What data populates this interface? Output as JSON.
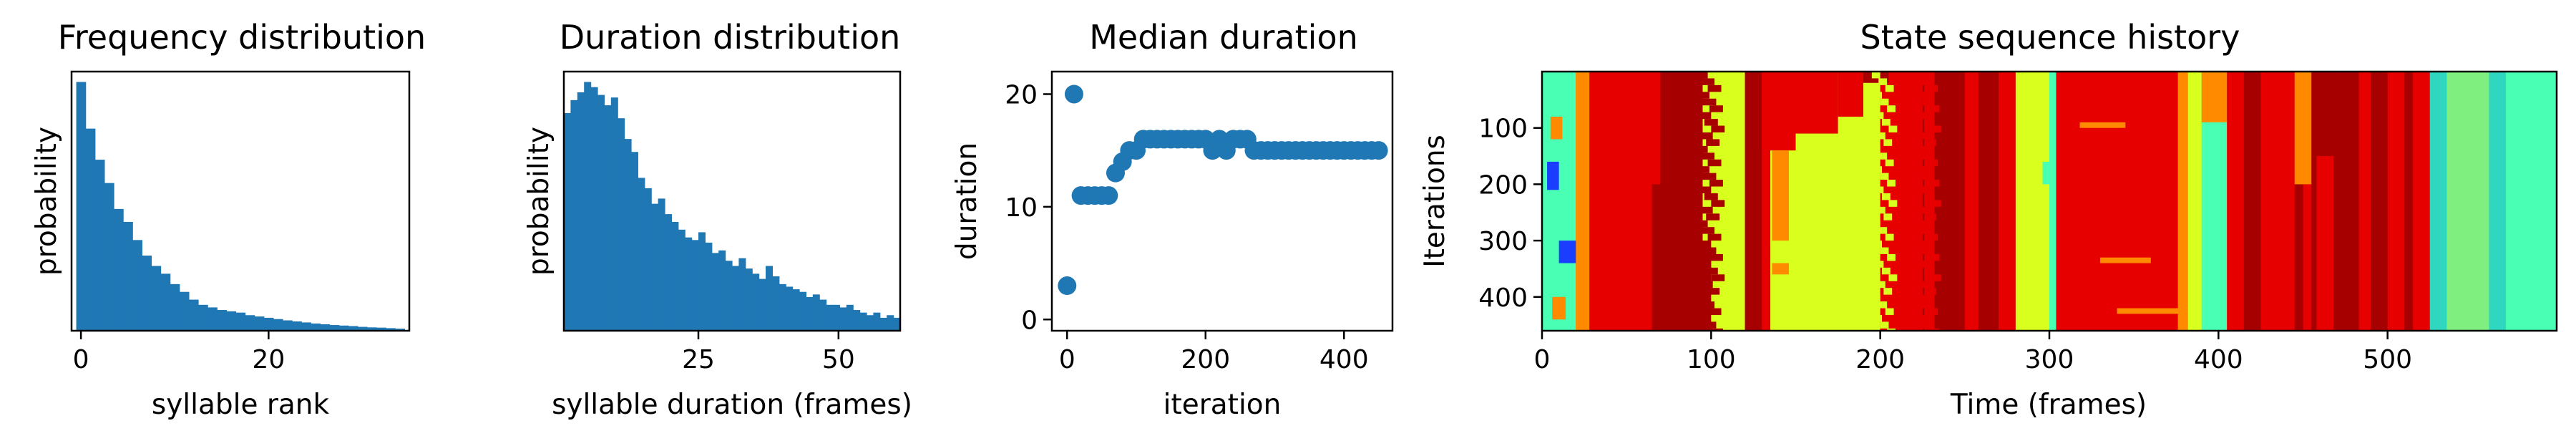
{
  "chart_data": [
    {
      "type": "bar",
      "title": "Frequency distribution",
      "xlabel": "syllable rank",
      "ylabel": "probability",
      "xlim": [
        -1,
        35
      ],
      "ylim": [
        0,
        1.0
      ],
      "xticks": [
        0,
        20
      ],
      "yticks": [],
      "color": "#1f77b4",
      "values": [
        0.96,
        0.78,
        0.66,
        0.57,
        0.47,
        0.42,
        0.35,
        0.29,
        0.25,
        0.22,
        0.18,
        0.15,
        0.12,
        0.1,
        0.09,
        0.08,
        0.075,
        0.07,
        0.06,
        0.055,
        0.05,
        0.045,
        0.04,
        0.036,
        0.032,
        0.028,
        0.025,
        0.022,
        0.02,
        0.018,
        0.015,
        0.013,
        0.012,
        0.01,
        0.008
      ]
    },
    {
      "type": "bar",
      "title": "Duration distribution",
      "xlabel": "syllable duration (frames)",
      "ylabel": "probability",
      "xlim": [
        1,
        61
      ],
      "ylim": [
        0,
        1.0
      ],
      "xticks": [
        25,
        50
      ],
      "yticks": [],
      "color": "#1f77b4",
      "values": [
        0.84,
        0.89,
        0.92,
        0.96,
        0.94,
        0.91,
        0.87,
        0.9,
        0.82,
        0.74,
        0.69,
        0.59,
        0.55,
        0.49,
        0.51,
        0.45,
        0.42,
        0.39,
        0.36,
        0.35,
        0.38,
        0.34,
        0.3,
        0.31,
        0.27,
        0.25,
        0.28,
        0.24,
        0.22,
        0.2,
        0.25,
        0.21,
        0.18,
        0.17,
        0.16,
        0.15,
        0.13,
        0.14,
        0.12,
        0.1,
        0.1,
        0.09,
        0.1,
        0.08,
        0.07,
        0.06,
        0.07,
        0.05,
        0.06,
        0.05
      ]
    },
    {
      "type": "scatter",
      "title": "Median duration",
      "xlabel": "iteration",
      "ylabel": "duration",
      "xlim": [
        -22,
        470
      ],
      "ylim": [
        -1,
        22
      ],
      "xticks": [
        0,
        200,
        400
      ],
      "yticks": [
        0,
        10,
        20
      ],
      "color": "#1f77b4",
      "x": [
        0,
        10,
        20,
        30,
        40,
        50,
        60,
        70,
        80,
        90,
        100,
        110,
        120,
        130,
        140,
        150,
        160,
        170,
        180,
        190,
        200,
        210,
        220,
        230,
        240,
        250,
        260,
        270,
        280,
        290,
        300,
        310,
        320,
        330,
        340,
        350,
        360,
        370,
        380,
        390,
        400,
        410,
        420,
        430,
        440,
        450
      ],
      "y": [
        3,
        20,
        11,
        11,
        11,
        11,
        11,
        13,
        14,
        15,
        15,
        16,
        16,
        16,
        16,
        16,
        16,
        16,
        16,
        16,
        16,
        15,
        16,
        15,
        16,
        16,
        16,
        15,
        15,
        15,
        15,
        15,
        15,
        15,
        15,
        15,
        15,
        15,
        15,
        15,
        15,
        15,
        15,
        15,
        15,
        15
      ]
    },
    {
      "type": "heatmap",
      "title": "State sequence history",
      "xlabel": "Time (frames)",
      "ylabel": "Iterations",
      "xlim": [
        0,
        600
      ],
      "ylim": [
        460,
        0
      ],
      "xticks": [
        0,
        100,
        200,
        300,
        400,
        500
      ],
      "yticks": [
        100,
        200,
        300,
        400
      ],
      "palette": {
        "red": "#e60000",
        "darkred": "#a70000",
        "yellow": "#d9ff1f",
        "orange": "#ff8a00",
        "cyan": "#49ffb4",
        "lightgreen": "#7ff07f",
        "blue": "#1a3dff",
        "teal": "#2fd6c0"
      },
      "segments": [
        {
          "x0": 0,
          "x1": 10,
          "state": "cyan"
        },
        {
          "x0": 10,
          "x1": 25,
          "state": "orange"
        },
        {
          "x0": 25,
          "x1": 65,
          "state": "red"
        },
        {
          "x0": 65,
          "x1": 95,
          "state": "darkred"
        },
        {
          "x0": 95,
          "x1": 120,
          "state": "yellow"
        },
        {
          "x0": 120,
          "x1": 135,
          "state": "red"
        },
        {
          "x0": 135,
          "x1": 200,
          "state": "yellow"
        },
        {
          "x0": 200,
          "x1": 225,
          "state": "red"
        },
        {
          "x0": 225,
          "x1": 280,
          "state": "darkred"
        },
        {
          "x0": 280,
          "x1": 300,
          "state": "yellow"
        },
        {
          "x0": 300,
          "x1": 310,
          "state": "cyan"
        },
        {
          "x0": 310,
          "x1": 380,
          "state": "red"
        },
        {
          "x0": 380,
          "x1": 390,
          "state": "yellow"
        },
        {
          "x0": 390,
          "x1": 410,
          "state": "cyan"
        },
        {
          "x0": 410,
          "x1": 450,
          "state": "darkred"
        },
        {
          "x0": 450,
          "x1": 470,
          "state": "red"
        },
        {
          "x0": 470,
          "x1": 530,
          "state": "darkred"
        },
        {
          "x0": 530,
          "x1": 570,
          "state": "lightgreen"
        },
        {
          "x0": 570,
          "x1": 600,
          "state": "cyan"
        }
      ],
      "patches": [
        {
          "x0": 0,
          "x1": 20,
          "y0": 0,
          "y1": 460,
          "state": "cyan"
        },
        {
          "x0": 5,
          "x1": 12,
          "y0": 80,
          "y1": 120,
          "state": "orange"
        },
        {
          "x0": 3,
          "x1": 10,
          "y0": 160,
          "y1": 210,
          "state": "blue"
        },
        {
          "x0": 10,
          "x1": 22,
          "y0": 300,
          "y1": 340,
          "state": "blue"
        },
        {
          "x0": 6,
          "x1": 14,
          "y0": 400,
          "y1": 440,
          "state": "orange"
        },
        {
          "x0": 20,
          "x1": 28,
          "y0": 0,
          "y1": 460,
          "state": "orange"
        },
        {
          "x0": 60,
          "x1": 70,
          "y0": 0,
          "y1": 200,
          "state": "red"
        },
        {
          "x0": 70,
          "x1": 90,
          "y0": 120,
          "y1": 460,
          "state": "darkred"
        },
        {
          "x0": 90,
          "x1": 100,
          "y0": 300,
          "y1": 460,
          "state": "darkred"
        },
        {
          "x0": 120,
          "x1": 130,
          "y0": 0,
          "y1": 460,
          "state": "darkred"
        },
        {
          "x0": 130,
          "x1": 150,
          "y0": 0,
          "y1": 140,
          "state": "red"
        },
        {
          "x0": 150,
          "x1": 175,
          "y0": 0,
          "y1": 110,
          "state": "red"
        },
        {
          "x0": 175,
          "x1": 190,
          "y0": 0,
          "y1": 80,
          "state": "red"
        },
        {
          "x0": 136,
          "x1": 146,
          "y0": 140,
          "y1": 300,
          "state": "orange"
        },
        {
          "x0": 136,
          "x1": 146,
          "y0": 340,
          "y1": 360,
          "state": "orange"
        },
        {
          "x0": 190,
          "x1": 205,
          "y0": 0,
          "y1": 20,
          "state": "darkred"
        },
        {
          "x0": 205,
          "x1": 225,
          "y0": 120,
          "y1": 460,
          "state": "red"
        },
        {
          "x0": 226,
          "x1": 232,
          "y0": 0,
          "y1": 460,
          "state": "red"
        },
        {
          "x0": 250,
          "x1": 258,
          "y0": 0,
          "y1": 460,
          "state": "red"
        },
        {
          "x0": 270,
          "x1": 280,
          "y0": 0,
          "y1": 460,
          "state": "red"
        },
        {
          "x0": 296,
          "x1": 305,
          "y0": 160,
          "y1": 200,
          "state": "cyan"
        },
        {
          "x0": 304,
          "x1": 312,
          "y0": 0,
          "y1": 460,
          "state": "red"
        },
        {
          "x0": 318,
          "x1": 345,
          "y0": 90,
          "y1": 100,
          "state": "orange"
        },
        {
          "x0": 330,
          "x1": 360,
          "y0": 330,
          "y1": 340,
          "state": "orange"
        },
        {
          "x0": 340,
          "x1": 380,
          "y0": 420,
          "y1": 430,
          "state": "orange"
        },
        {
          "x0": 376,
          "x1": 382,
          "y0": 0,
          "y1": 460,
          "state": "orange"
        },
        {
          "x0": 390,
          "x1": 405,
          "y0": 0,
          "y1": 90,
          "state": "orange"
        },
        {
          "x0": 405,
          "x1": 415,
          "y0": 0,
          "y1": 460,
          "state": "red"
        },
        {
          "x0": 425,
          "x1": 445,
          "y0": 0,
          "y1": 460,
          "state": "red"
        },
        {
          "x0": 445,
          "x1": 455,
          "y0": 0,
          "y1": 200,
          "state": "orange"
        },
        {
          "x0": 455,
          "x1": 470,
          "y0": 0,
          "y1": 460,
          "state": "darkred"
        },
        {
          "x0": 458,
          "x1": 468,
          "y0": 150,
          "y1": 460,
          "state": "red"
        },
        {
          "x0": 483,
          "x1": 490,
          "y0": 0,
          "y1": 460,
          "state": "red"
        },
        {
          "x0": 500,
          "x1": 510,
          "y0": 0,
          "y1": 460,
          "state": "red"
        },
        {
          "x0": 515,
          "x1": 525,
          "y0": 0,
          "y1": 460,
          "state": "red"
        },
        {
          "x0": 525,
          "x1": 535,
          "y0": 0,
          "y1": 460,
          "state": "teal"
        },
        {
          "x0": 560,
          "x1": 570,
          "y0": 0,
          "y1": 460,
          "state": "teal"
        },
        {
          "x0": 575,
          "x1": 600,
          "y0": 0,
          "y1": 460,
          "state": "cyan"
        }
      ]
    }
  ]
}
